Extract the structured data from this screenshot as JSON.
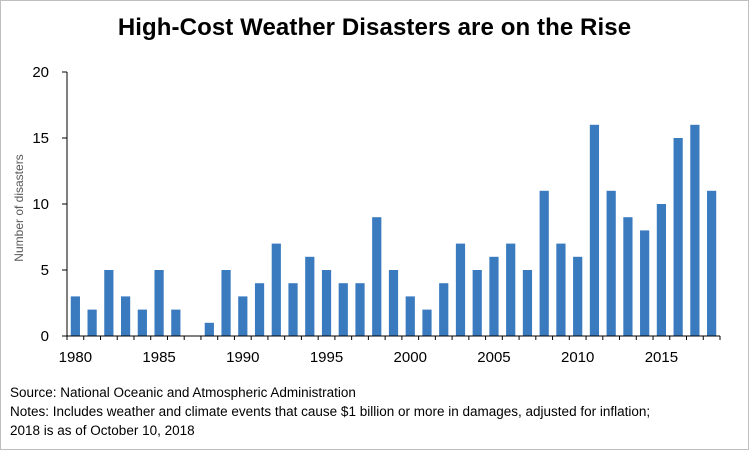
{
  "chart_data": {
    "type": "bar",
    "title": "High-Cost Weather Disasters are on the Rise",
    "xlabel": "",
    "ylabel": "Number of disasters",
    "ylim": [
      0,
      20
    ],
    "yticks": [
      "0",
      "5",
      "10",
      "15",
      "20"
    ],
    "xtick_labels": [
      "1980",
      "1985",
      "1990",
      "1995",
      "2000",
      "2005",
      "2010",
      "2015"
    ],
    "grid": false,
    "legend": "none",
    "bar_color": "#3a7bc0",
    "categories": [
      1980,
      1981,
      1982,
      1983,
      1984,
      1985,
      1986,
      1987,
      1988,
      1989,
      1990,
      1991,
      1992,
      1993,
      1994,
      1995,
      1996,
      1997,
      1998,
      1999,
      2000,
      2001,
      2002,
      2003,
      2004,
      2005,
      2006,
      2007,
      2008,
      2009,
      2010,
      2011,
      2012,
      2013,
      2014,
      2015,
      2016,
      2017,
      2018
    ],
    "values": [
      3,
      2,
      5,
      3,
      2,
      5,
      2,
      0,
      1,
      5,
      3,
      4,
      7,
      4,
      6,
      5,
      4,
      4,
      9,
      5,
      3,
      2,
      4,
      7,
      5,
      6,
      7,
      5,
      11,
      7,
      6,
      16,
      11,
      9,
      8,
      10,
      15,
      16,
      11
    ]
  },
  "notes": {
    "source": "Source: National Oceanic and Atmospheric Administration",
    "line1": "Notes: Includes weather and climate events that cause $1 billion or more in damages, adjusted for inflation;",
    "line2": "2018 is as of October 10, 2018"
  }
}
